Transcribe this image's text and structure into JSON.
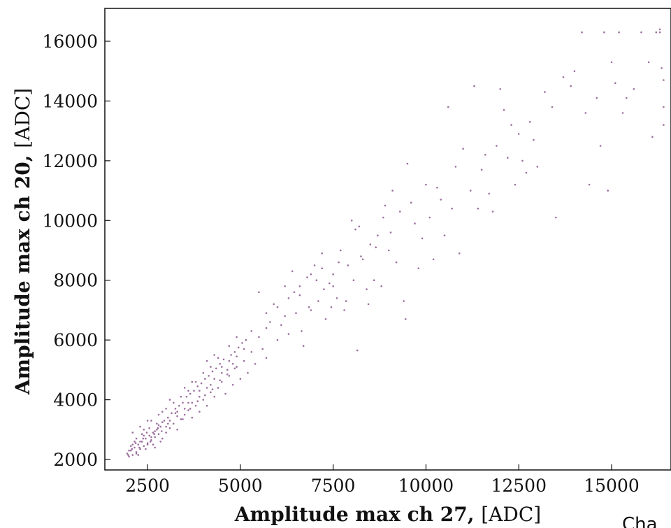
{
  "chart_data": {
    "type": "scatter",
    "title": "",
    "xlabel": "Amplitude max ch 27",
    "xlabel_unit": "[ADC]",
    "ylabel": "Amplitude max ch 20",
    "ylabel_unit": "[ADC]",
    "xlim": [
      1350,
      16600
    ],
    "ylim": [
      1650,
      17100
    ],
    "xticks": [
      2500,
      5000,
      7500,
      10000,
      12500,
      15000
    ],
    "yticks": [
      2000,
      4000,
      6000,
      8000,
      10000,
      12000,
      14000,
      16000
    ],
    "xtick_labels": [
      "2500",
      "5000",
      "7500",
      "10000",
      "12500",
      "15000"
    ],
    "ytick_labels": [
      "2000",
      "4000",
      "6000",
      "8000",
      "10000",
      "12000",
      "14000",
      "16000"
    ],
    "grid": false,
    "marker_color": "#9b6f9e",
    "series": [
      {
        "points": [
          [
            1950,
            2200
          ],
          [
            2000,
            2100
          ],
          [
            2050,
            2300
          ],
          [
            2100,
            2150
          ],
          [
            2150,
            2400
          ],
          [
            2200,
            2250
          ],
          [
            2250,
            2500
          ],
          [
            2300,
            2350
          ],
          [
            2350,
            2600
          ],
          [
            2400,
            2450
          ],
          [
            2450,
            2700
          ],
          [
            2500,
            2550
          ],
          [
            2550,
            2800
          ],
          [
            2600,
            2650
          ],
          [
            2650,
            2900
          ],
          [
            2700,
            2750
          ],
          [
            2750,
            3000
          ],
          [
            2800,
            2850
          ],
          [
            2850,
            3100
          ],
          [
            2900,
            2700
          ],
          [
            2050,
            2450
          ],
          [
            2150,
            2600
          ],
          [
            2250,
            2150
          ],
          [
            2350,
            2850
          ],
          [
            2450,
            2350
          ],
          [
            2550,
            3050
          ],
          [
            2650,
            2500
          ],
          [
            2750,
            3200
          ],
          [
            2850,
            2600
          ],
          [
            2950,
            3300
          ],
          [
            3000,
            2900
          ],
          [
            3050,
            3400
          ],
          [
            3100,
            3050
          ],
          [
            3150,
            3550
          ],
          [
            3200,
            3200
          ],
          [
            3250,
            3700
          ],
          [
            3300,
            3000
          ],
          [
            3350,
            3800
          ],
          [
            3400,
            3350
          ],
          [
            3450,
            3900
          ],
          [
            3500,
            3500
          ],
          [
            3550,
            4100
          ],
          [
            3600,
            3650
          ],
          [
            3650,
            4200
          ],
          [
            3700,
            3400
          ],
          [
            3750,
            4300
          ],
          [
            3800,
            3800
          ],
          [
            3850,
            4450
          ],
          [
            3900,
            3600
          ],
          [
            3950,
            4550
          ],
          [
            4000,
            4000
          ],
          [
            4050,
            4700
          ],
          [
            4100,
            3800
          ],
          [
            4150,
            4800
          ],
          [
            4200,
            4250
          ],
          [
            4250,
            4950
          ],
          [
            4300,
            4100
          ],
          [
            4350,
            5050
          ],
          [
            4400,
            4400
          ],
          [
            4450,
            5200
          ],
          [
            4500,
            4600
          ],
          [
            4550,
            5350
          ],
          [
            4600,
            4200
          ],
          [
            4650,
            5000
          ],
          [
            4700,
            4800
          ],
          [
            4750,
            5500
          ],
          [
            4800,
            4500
          ],
          [
            4850,
            5600
          ],
          [
            4900,
            5100
          ],
          [
            4950,
            5750
          ],
          [
            5000,
            4700
          ],
          [
            5050,
            5900
          ],
          [
            5100,
            5300
          ],
          [
            5150,
            6000
          ],
          [
            5200,
            4900
          ],
          [
            5300,
            5600
          ],
          [
            5400,
            5200
          ],
          [
            5500,
            6100
          ],
          [
            5600,
            5700
          ],
          [
            5700,
            5400
          ],
          [
            2600,
            3300
          ],
          [
            2800,
            3500
          ],
          [
            3000,
            3700
          ],
          [
            3200,
            3900
          ],
          [
            3400,
            4100
          ],
          [
            3600,
            4300
          ],
          [
            3800,
            4600
          ],
          [
            4000,
            4900
          ],
          [
            4200,
            5100
          ],
          [
            4400,
            5400
          ],
          [
            2200,
            2700
          ],
          [
            2400,
            3000
          ],
          [
            2700,
            2400
          ],
          [
            3000,
            3100
          ],
          [
            3300,
            3600
          ],
          [
            3600,
            3900
          ],
          [
            3900,
            4100
          ],
          [
            4200,
            4500
          ],
          [
            4500,
            4900
          ],
          [
            4800,
            5200
          ],
          [
            2100,
            2900
          ],
          [
            2300,
            3100
          ],
          [
            2500,
            3300
          ],
          [
            2900,
            3600
          ],
          [
            3100,
            4000
          ],
          [
            3500,
            4400
          ],
          [
            3700,
            4600
          ],
          [
            4100,
            5300
          ],
          [
            4300,
            5500
          ],
          [
            4700,
            5800
          ],
          [
            5500,
            7600
          ],
          [
            5700,
            6900
          ],
          [
            5900,
            7200
          ],
          [
            6100,
            6500
          ],
          [
            6200,
            7800
          ],
          [
            6300,
            6200
          ],
          [
            6400,
            8300
          ],
          [
            6500,
            6900
          ],
          [
            6600,
            7500
          ],
          [
            6700,
            5800
          ],
          [
            6800,
            8100
          ],
          [
            6900,
            7000
          ],
          [
            7000,
            8500
          ],
          [
            7100,
            7300
          ],
          [
            7200,
            8900
          ],
          [
            7300,
            6700
          ],
          [
            7400,
            7900
          ],
          [
            7500,
            8200
          ],
          [
            7600,
            7400
          ],
          [
            7700,
            9000
          ],
          [
            7800,
            7000
          ],
          [
            7900,
            8500
          ],
          [
            8000,
            10000
          ],
          [
            8100,
            9700
          ],
          [
            8150,
            5650
          ],
          [
            8200,
            9800
          ],
          [
            8300,
            8700
          ],
          [
            8400,
            7700
          ],
          [
            8500,
            9200
          ],
          [
            8600,
            8000
          ],
          [
            8700,
            9500
          ],
          [
            8800,
            7800
          ],
          [
            8900,
            10500
          ],
          [
            9000,
            9000
          ],
          [
            9100,
            11000
          ],
          [
            9200,
            8600
          ],
          [
            9300,
            10300
          ],
          [
            9400,
            7300
          ],
          [
            9450,
            6700
          ],
          [
            9500,
            11900
          ],
          [
            9600,
            10600
          ],
          [
            9700,
            9900
          ],
          [
            9800,
            8400
          ],
          [
            9900,
            9400
          ],
          [
            10000,
            11200
          ],
          [
            10100,
            10100
          ],
          [
            10200,
            8700
          ],
          [
            10300,
            11100
          ],
          [
            10400,
            10700
          ],
          [
            10500,
            9500
          ],
          [
            10600,
            13800
          ],
          [
            10700,
            10400
          ],
          [
            10800,
            11800
          ],
          [
            10900,
            8900
          ],
          [
            11000,
            12400
          ],
          [
            11200,
            11000
          ],
          [
            11300,
            14500
          ],
          [
            11400,
            10400
          ],
          [
            11500,
            11700
          ],
          [
            11600,
            12200
          ],
          [
            11700,
            10900
          ],
          [
            11800,
            10300
          ],
          [
            11900,
            12500
          ],
          [
            12000,
            14400
          ],
          [
            12100,
            13700
          ],
          [
            12200,
            12100
          ],
          [
            12300,
            13200
          ],
          [
            12400,
            11200
          ],
          [
            12500,
            12900
          ],
          [
            12600,
            12000
          ],
          [
            12700,
            11600
          ],
          [
            12800,
            13300
          ],
          [
            12900,
            12700
          ],
          [
            13000,
            11800
          ],
          [
            13200,
            14300
          ],
          [
            13400,
            13800
          ],
          [
            13500,
            10100
          ],
          [
            13700,
            14800
          ],
          [
            13900,
            14500
          ],
          [
            14000,
            15000
          ],
          [
            14200,
            16300
          ],
          [
            14300,
            13600
          ],
          [
            14400,
            11200
          ],
          [
            14600,
            14100
          ],
          [
            14700,
            12500
          ],
          [
            14800,
            16300
          ],
          [
            14900,
            11000
          ],
          [
            15000,
            15300
          ],
          [
            15100,
            14600
          ],
          [
            15200,
            16300
          ],
          [
            15300,
            13600
          ],
          [
            15400,
            14100
          ],
          [
            15600,
            14400
          ],
          [
            15800,
            16300
          ],
          [
            16000,
            15300
          ],
          [
            16100,
            12800
          ],
          [
            16200,
            16300
          ],
          [
            16300,
            16300
          ],
          [
            16400,
            14700
          ],
          [
            16400,
            13200
          ],
          [
            16350,
            15100
          ],
          [
            16400,
            13800
          ],
          [
            16300,
            16400
          ],
          [
            5800,
            6600
          ],
          [
            6000,
            6000
          ],
          [
            6200,
            6800
          ],
          [
            6450,
            7600
          ],
          [
            6650,
            6300
          ],
          [
            6850,
            7100
          ],
          [
            7050,
            8000
          ],
          [
            7250,
            7700
          ],
          [
            7450,
            7100
          ],
          [
            7650,
            8600
          ],
          [
            7850,
            7300
          ],
          [
            8050,
            8000
          ],
          [
            8250,
            8800
          ],
          [
            8450,
            7200
          ],
          [
            8650,
            9100
          ],
          [
            8850,
            10100
          ],
          [
            9050,
            9600
          ],
          [
            5300,
            6300
          ],
          [
            5100,
            5700
          ],
          [
            4900,
            6100
          ],
          [
            5700,
            6400
          ],
          [
            6000,
            7100
          ],
          [
            6300,
            7400
          ],
          [
            6600,
            7800
          ],
          [
            6900,
            8200
          ],
          [
            7200,
            8400
          ],
          [
            7500,
            7800
          ],
          [
            2000,
            2300
          ],
          [
            2100,
            2500
          ],
          [
            2200,
            2200
          ],
          [
            2300,
            2600
          ],
          [
            2400,
            2800
          ],
          [
            2500,
            2500
          ],
          [
            2600,
            2750
          ],
          [
            2700,
            2950
          ],
          [
            2800,
            3150
          ],
          [
            2900,
            3250
          ],
          [
            3100,
            3300
          ],
          [
            3300,
            3450
          ],
          [
            3500,
            3700
          ],
          [
            3700,
            3900
          ],
          [
            3900,
            4300
          ],
          [
            4100,
            4400
          ],
          [
            4300,
            4700
          ],
          [
            4500,
            5100
          ],
          [
            4700,
            5300
          ],
          [
            4900,
            5450
          ],
          [
            1980,
            2150
          ],
          [
            2080,
            2350
          ],
          [
            2180,
            2550
          ],
          [
            2280,
            2400
          ],
          [
            2380,
            2700
          ],
          [
            2480,
            2900
          ],
          [
            2580,
            2600
          ],
          [
            2680,
            2850
          ],
          [
            2780,
            3050
          ],
          [
            2880,
            2950
          ],
          [
            3050,
            3200
          ],
          [
            3250,
            3550
          ],
          [
            3450,
            3350
          ],
          [
            3650,
            3700
          ],
          [
            3850,
            3950
          ],
          [
            4050,
            4150
          ],
          [
            4250,
            4350
          ],
          [
            4450,
            4650
          ],
          [
            4650,
            4850
          ],
          [
            4850,
            5050
          ]
        ]
      }
    ]
  },
  "footer_fragment": "Cha"
}
